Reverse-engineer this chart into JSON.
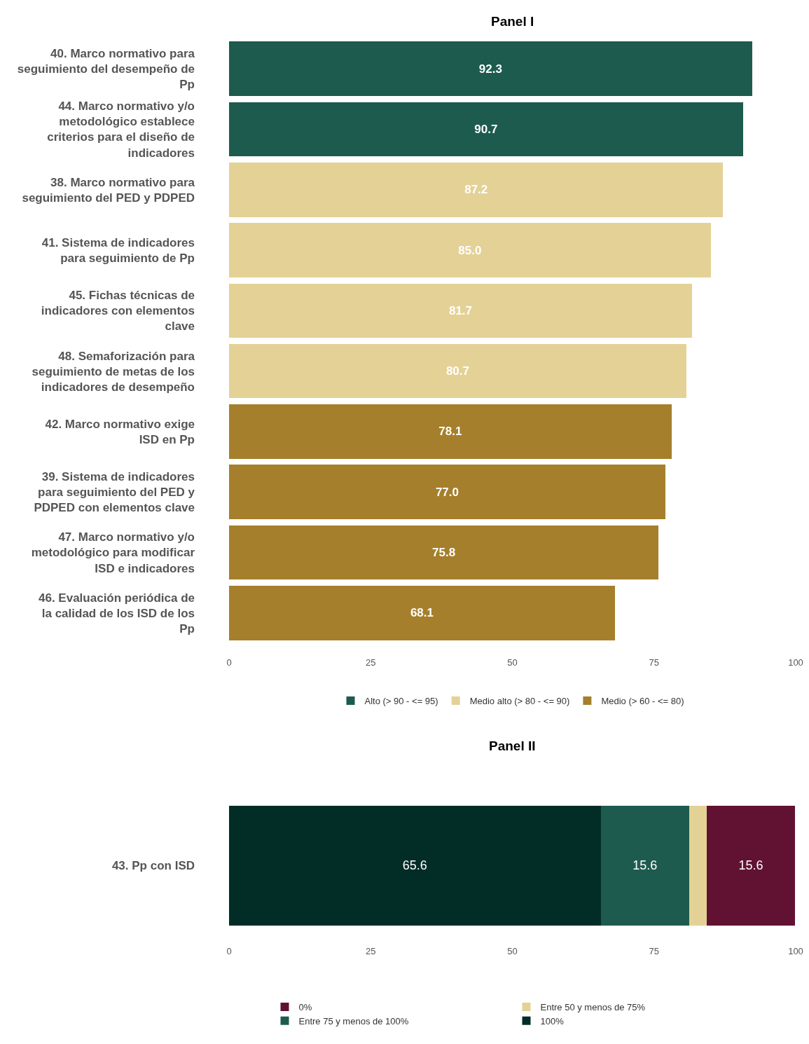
{
  "chart_data": [
    {
      "type": "bar",
      "orientation": "horizontal",
      "stacked": true,
      "title": "Panel I",
      "categories": [
        "40. Marco normativo para seguimiento del desempeño de Pp",
        "44. Marco normativo y/o metodológico establece criterios para el diseño de indicadores",
        "38. Marco normativo para seguimiento del PED y PDPED",
        "41. Sistema de indicadores para seguimiento de Pp",
        "45. Fichas técnicas de indicadores con elementos clave",
        "48. Semaforización para seguimiento de metas de los indicadores de desempeño",
        "42. Marco normativo exige ISD en Pp",
        "39. Sistema de indicadores para seguimiento del PED y PDPED con elementos clave",
        "47. Marco normativo y/o metodológico para modificar ISD e indicadores",
        "46. Evaluación periódica de la calidad de los ISD de los Pp"
      ],
      "series": [
        {
          "name": "Alto (> 90 - <= 95)",
          "color": "#1e5b4f",
          "values": [
            92.3,
            90.7,
            null,
            null,
            null,
            null,
            null,
            null,
            null,
            null
          ],
          "value_labels": [
            "92.3",
            "90.7",
            null,
            null,
            null,
            null,
            null,
            null,
            null,
            null
          ]
        },
        {
          "name": "Medio alto (> 80 - <= 90)",
          "color": "#e4d196",
          "values": [
            null,
            null,
            87.2,
            85.0,
            81.7,
            80.7,
            null,
            null,
            null,
            null
          ],
          "value_labels": [
            null,
            null,
            "87.2",
            "85.0",
            "81.7",
            "80.7",
            null,
            null,
            null,
            null
          ]
        },
        {
          "name": "Medio (> 60 - <= 80)",
          "color": "#a57f2c",
          "values": [
            null,
            null,
            null,
            null,
            null,
            null,
            78.1,
            77.0,
            75.8,
            68.1
          ],
          "value_labels": [
            null,
            null,
            null,
            null,
            null,
            null,
            "78.1",
            "77.0",
            "75.8",
            "68.1"
          ]
        }
      ],
      "xlim": [
        0,
        100
      ],
      "xticks": [
        0,
        25,
        50,
        75,
        100
      ],
      "legend": "bottom"
    },
    {
      "type": "bar",
      "orientation": "horizontal",
      "stacked": true,
      "title": "Panel II",
      "categories": [
        "43. Pp con ISD"
      ],
      "series": [
        {
          "name": "100%",
          "color": "#022d27",
          "values": [
            65.6
          ],
          "value_labels": [
            "65.6"
          ]
        },
        {
          "name": "Entre 75 y menos de 100%",
          "color": "#1e5b4f",
          "values": [
            15.6
          ],
          "value_labels": [
            "15.6"
          ]
        },
        {
          "name": "Entre 50 y menos de 75%",
          "color": "#e4d196",
          "values": [
            3.1
          ],
          "value_labels": [
            null
          ]
        },
        {
          "name": "0%",
          "color": "#611232",
          "values": [
            15.6
          ],
          "value_labels": [
            "15.6"
          ]
        }
      ],
      "xlim": [
        0,
        100
      ],
      "xticks": [
        0,
        25,
        50,
        75,
        100
      ],
      "legend": "bottom"
    }
  ]
}
